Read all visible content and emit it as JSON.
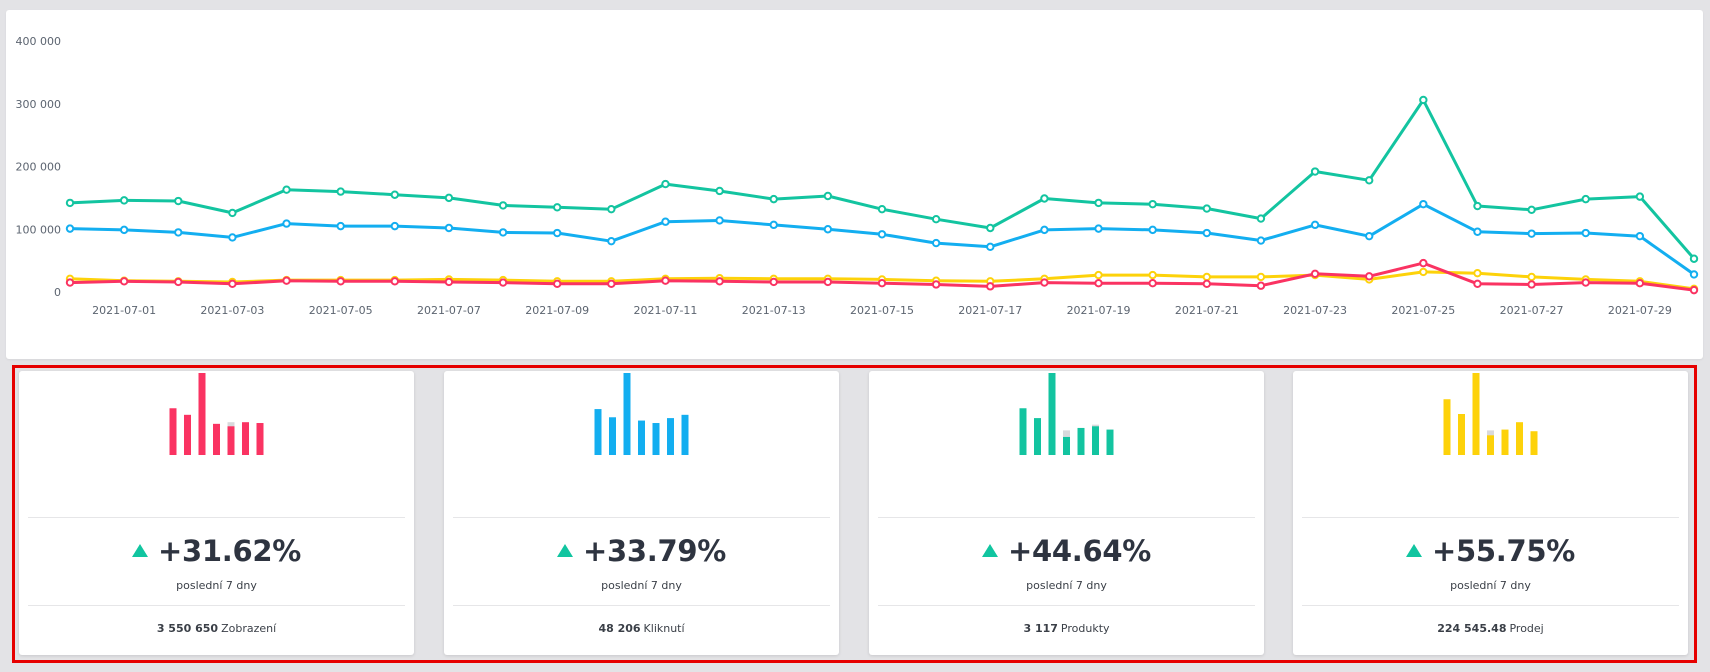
{
  "chart_data": {
    "type": "line",
    "x": [
      "2021-06-30",
      "2021-07-01",
      "2021-07-02",
      "2021-07-03",
      "2021-07-04",
      "2021-07-05",
      "2021-07-06",
      "2021-07-07",
      "2021-07-08",
      "2021-07-09",
      "2021-07-10",
      "2021-07-11",
      "2021-07-12",
      "2021-07-13",
      "2021-07-14",
      "2021-07-15",
      "2021-07-16",
      "2021-07-17",
      "2021-07-18",
      "2021-07-19",
      "2021-07-20",
      "2021-07-21",
      "2021-07-22",
      "2021-07-23",
      "2021-07-24",
      "2021-07-25",
      "2021-07-26",
      "2021-07-27",
      "2021-07-28",
      "2021-07-29",
      "2021-07-30"
    ],
    "xtick_labels": [
      "2021-07-01",
      "2021-07-03",
      "2021-07-05",
      "2021-07-07",
      "2021-07-09",
      "2021-07-11",
      "2021-07-13",
      "2021-07-15",
      "2021-07-17",
      "2021-07-19",
      "2021-07-21",
      "2021-07-23",
      "2021-07-25",
      "2021-07-27",
      "2021-07-29"
    ],
    "ytick_labels": [
      "0",
      "100 000",
      "200 000",
      "300 000",
      "400 000"
    ],
    "ylim": [
      0,
      400000
    ],
    "grid": false,
    "series": [
      {
        "color": "#13c4a0",
        "values": [
          142000,
          146000,
          145000,
          126000,
          163000,
          160000,
          155000,
          150000,
          138000,
          135000,
          132000,
          172000,
          161000,
          148000,
          153000,
          132000,
          116000,
          102000,
          149000,
          142000,
          140000,
          133000,
          117000,
          192000,
          178000,
          306000,
          137000,
          131000,
          148000,
          152000,
          53000
        ]
      },
      {
        "color": "#13aef0",
        "values": [
          101000,
          99000,
          95000,
          87000,
          109000,
          105000,
          105000,
          102000,
          95000,
          94000,
          81000,
          112000,
          114000,
          107000,
          100000,
          92000,
          78000,
          72000,
          99000,
          101000,
          99000,
          94000,
          82000,
          107000,
          89000,
          140000,
          96000,
          93000,
          94000,
          89000,
          28000
        ]
      },
      {
        "color": "#fdd20a",
        "values": [
          21000,
          18000,
          17000,
          16000,
          19000,
          19000,
          19000,
          20000,
          19000,
          17000,
          17000,
          21000,
          22000,
          21000,
          21000,
          20000,
          18000,
          17000,
          21000,
          27000,
          27000,
          24000,
          24000,
          27000,
          20000,
          32000,
          30000,
          24000,
          20000,
          17000,
          5000
        ]
      },
      {
        "color": "#fa3362",
        "values": [
          15000,
          17000,
          16000,
          13000,
          18000,
          17000,
          17000,
          16000,
          15000,
          13000,
          13000,
          18000,
          17000,
          16000,
          16000,
          14000,
          12000,
          9000,
          15000,
          14000,
          14000,
          13000,
          10000,
          29000,
          25000,
          46000,
          13000,
          12000,
          15000,
          14000,
          3000
        ]
      }
    ]
  },
  "cards": [
    {
      "color": "#fa3362",
      "delta": "+31.62%",
      "period": "poslední 7 dny",
      "total_value": "3 550 650",
      "total_label": "Zobrazení",
      "bars": [
        0.57,
        0.49,
        1.0,
        0.38,
        0.35,
        0.4,
        0.39
      ],
      "bars_prev": [
        null,
        null,
        null,
        null,
        0.4,
        null,
        null
      ]
    },
    {
      "color": "#13aef0",
      "delta": "+33.79%",
      "period": "poslední 7 dny",
      "total_value": "48 206",
      "total_label": "Kliknutí",
      "bars": [
        0.56,
        0.46,
        1.0,
        0.42,
        0.39,
        0.45,
        0.49
      ],
      "bars_prev": [
        null,
        null,
        null,
        null,
        null,
        null,
        null
      ]
    },
    {
      "color": "#13c4a0",
      "delta": "+44.64%",
      "period": "poslední 7 dny",
      "total_value": "3 117",
      "total_label": "Produkty",
      "bars": [
        0.57,
        0.45,
        1.0,
        0.22,
        0.33,
        0.35,
        0.31
      ],
      "bars_prev": [
        null,
        null,
        null,
        0.3,
        null,
        0.37,
        null
      ]
    },
    {
      "color": "#fdd20a",
      "delta": "+55.75%",
      "period": "poslední 7 dny",
      "total_value": "224 545.48",
      "total_label": "Prodej",
      "bars": [
        0.68,
        0.5,
        1.0,
        0.24,
        0.31,
        0.4,
        0.29
      ],
      "bars_prev": [
        null,
        null,
        null,
        0.3,
        null,
        null,
        null
      ]
    }
  ]
}
